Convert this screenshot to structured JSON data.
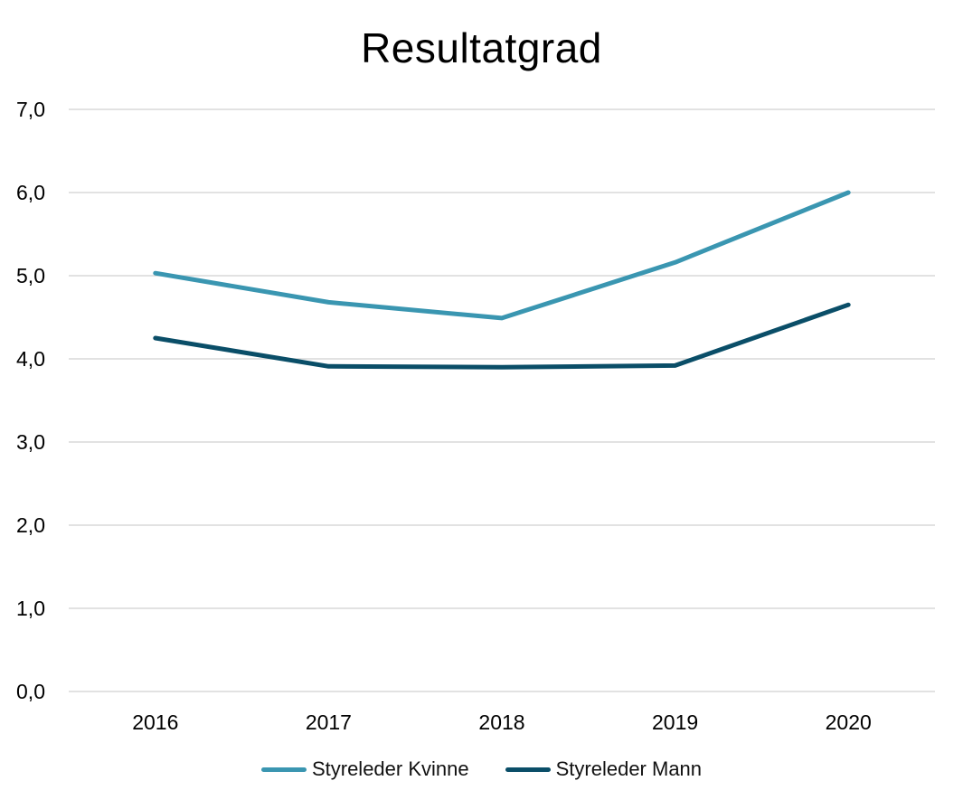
{
  "chart_data": {
    "type": "line",
    "title": "Resultatgrad",
    "categories": [
      "2016",
      "2017",
      "2018",
      "2019",
      "2020"
    ],
    "ylim": [
      0,
      7
    ],
    "yticks": [
      0,
      1,
      2,
      3,
      4,
      5,
      6,
      7
    ],
    "ytick_labels": [
      "0,0",
      "1,0",
      "2,0",
      "3,0",
      "4,0",
      "5,0",
      "6,0",
      "7,0"
    ],
    "grid": true,
    "legend_position": "bottom",
    "series": [
      {
        "name": "Styreleder Kvinne",
        "color": "#3a96b1",
        "values": [
          5.03,
          4.68,
          4.49,
          5.16,
          6.0
        ]
      },
      {
        "name": "Styreleder Mann",
        "color": "#0a4e68",
        "values": [
          4.25,
          3.91,
          3.9,
          3.92,
          4.65
        ]
      }
    ]
  }
}
